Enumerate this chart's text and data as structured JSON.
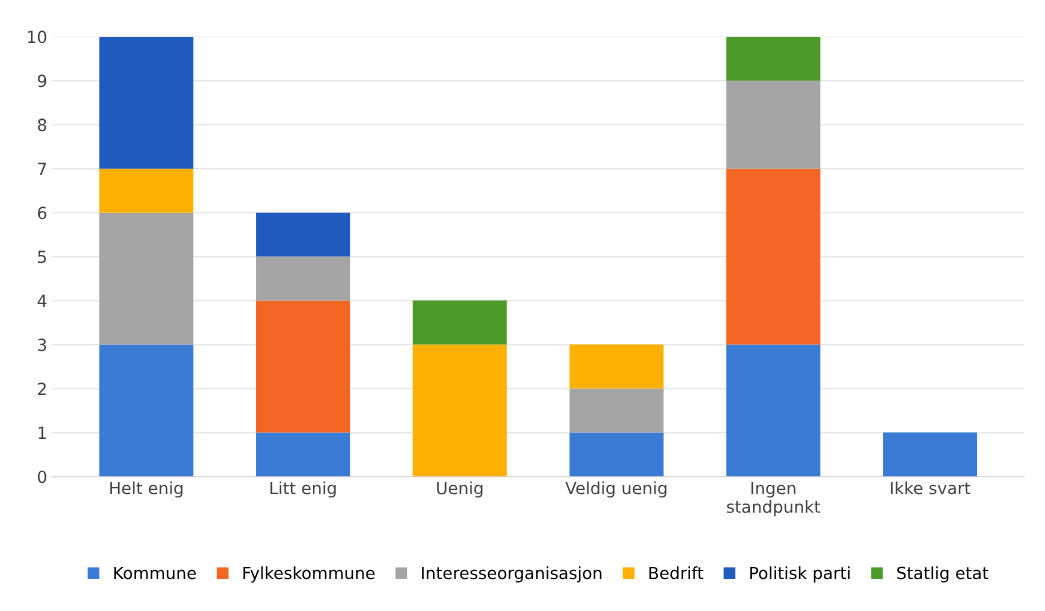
{
  "chart_data": {
    "type": "bar",
    "stacked": true,
    "categories": [
      "Helt enig",
      "Litt enig",
      "Uenig",
      "Veldig uenig",
      "Ingen\nstandpunkt",
      "Ikke svart"
    ],
    "series": [
      {
        "name": "Kommune",
        "color": "#3a7bd5",
        "values": [
          3,
          1,
          0,
          1,
          3,
          1
        ]
      },
      {
        "name": "Fylkeskommune",
        "color": "#f26522",
        "values": [
          0,
          3,
          0,
          0,
          4,
          0
        ]
      },
      {
        "name": "Interesseorganisasjon",
        "color": "#a5a5a5",
        "values": [
          3,
          1,
          0,
          1,
          2,
          0
        ]
      },
      {
        "name": "Bedrift",
        "color": "#ffb000",
        "values": [
          1,
          0,
          3,
          1,
          0,
          0
        ]
      },
      {
        "name": "Politisk parti",
        "color": "#1f5bbf",
        "values": [
          3,
          1,
          0,
          0,
          0,
          0
        ]
      },
      {
        "name": "Statlig etat",
        "color": "#4c9a2a",
        "values": [
          0,
          0,
          1,
          0,
          1,
          0
        ]
      }
    ],
    "ylim": [
      0,
      10
    ],
    "yticks": [
      0,
      1,
      2,
      3,
      4,
      5,
      6,
      7,
      8,
      9,
      10
    ],
    "grid": "y",
    "legend": "bottom"
  }
}
